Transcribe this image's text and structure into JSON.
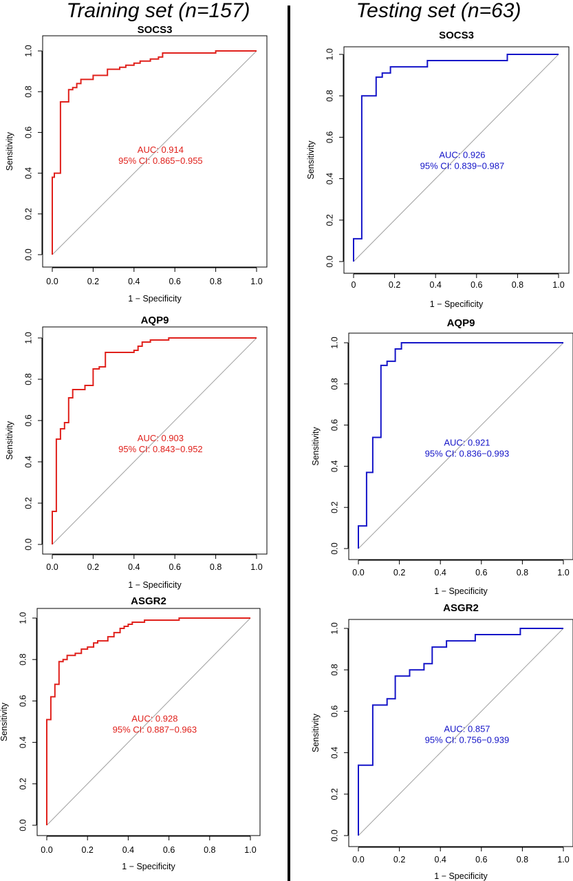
{
  "headings": {
    "left": "Training set (n=157)",
    "right": "Testing set (n=63)"
  },
  "colors": {
    "training": "#e0201b",
    "testing": "#1414c8",
    "diagonal": "#a0a0a0"
  },
  "chart_data": [
    {
      "type": "line",
      "title": "SOCS3",
      "xlabel": "1 − Specificity",
      "ylabel": "Sensitivity",
      "xlim": [
        0,
        1
      ],
      "ylim": [
        0,
        1
      ],
      "xticks": [
        "0.0",
        "0.2",
        "0.4",
        "0.6",
        "0.8",
        "1.0"
      ],
      "yticks": [
        "0.0",
        "0.2",
        "0.4",
        "0.6",
        "0.8",
        "1.0"
      ],
      "color": "#e0201b",
      "auc_text": "AUC: 0.914",
      "ci_text": "95% CI: 0.865−0.955",
      "x": [
        0,
        0,
        0.01,
        0.01,
        0.04,
        0.04,
        0.08,
        0.08,
        0.1,
        0.1,
        0.12,
        0.12,
        0.14,
        0.14,
        0.16,
        0.16,
        0.2,
        0.2,
        0.22,
        0.22,
        0.27,
        0.27,
        0.3,
        0.3,
        0.33,
        0.33,
        0.36,
        0.36,
        0.4,
        0.4,
        0.43,
        0.43,
        0.48,
        0.48,
        0.52,
        0.52,
        0.54,
        0.54,
        0.8,
        0.8,
        1
      ],
      "y": [
        0,
        0.38,
        0.38,
        0.4,
        0.4,
        0.75,
        0.75,
        0.81,
        0.81,
        0.82,
        0.82,
        0.84,
        0.84,
        0.86,
        0.86,
        0.86,
        0.86,
        0.88,
        0.88,
        0.88,
        0.88,
        0.91,
        0.91,
        0.91,
        0.91,
        0.92,
        0.92,
        0.93,
        0.93,
        0.94,
        0.94,
        0.95,
        0.95,
        0.96,
        0.96,
        0.97,
        0.97,
        0.99,
        0.99,
        1,
        1
      ]
    },
    {
      "type": "line",
      "title": "SOCS3",
      "xlabel": "1 − Specificity",
      "ylabel": "Sensitivity",
      "xlim": [
        0,
        1
      ],
      "ylim": [
        0,
        1
      ],
      "xticks": [
        "0",
        "0.2",
        "0.4",
        "0.6",
        "0.8",
        "1.0"
      ],
      "yticks": [
        "0.0",
        "0.2",
        "0.4",
        "0.6",
        "0.8",
        "1.0"
      ],
      "color": "#1414c8",
      "auc_text": "AUC: 0.926",
      "ci_text": "95% CI: 0.839−0.987",
      "x": [
        0,
        0,
        0.04,
        0.04,
        0.11,
        0.11,
        0.14,
        0.14,
        0.18,
        0.18,
        0.36,
        0.36,
        0.75,
        0.75,
        1
      ],
      "y": [
        0,
        0.11,
        0.11,
        0.8,
        0.8,
        0.89,
        0.89,
        0.91,
        0.91,
        0.94,
        0.94,
        0.97,
        0.97,
        1,
        1
      ]
    },
    {
      "type": "line",
      "title": "AQP9",
      "xlabel": "1 − Specificity",
      "ylabel": "Sensitivity",
      "xlim": [
        0,
        1
      ],
      "ylim": [
        0,
        1
      ],
      "xticks": [
        "0.0",
        "0.2",
        "0.4",
        "0.6",
        "0.8",
        "1.0"
      ],
      "yticks": [
        "0.0",
        "0.2",
        "0.4",
        "0.6",
        "0.8",
        "1.0"
      ],
      "color": "#e0201b",
      "auc_text": "AUC: 0.903",
      "ci_text": "95% CI: 0.843−0.952",
      "x": [
        0,
        0,
        0.02,
        0.02,
        0.04,
        0.04,
        0.06,
        0.06,
        0.08,
        0.08,
        0.1,
        0.1,
        0.12,
        0.12,
        0.16,
        0.16,
        0.2,
        0.2,
        0.23,
        0.23,
        0.26,
        0.26,
        0.4,
        0.4,
        0.42,
        0.42,
        0.44,
        0.44,
        0.48,
        0.48,
        0.52,
        0.52,
        0.57,
        0.57,
        1
      ],
      "y": [
        0,
        0.16,
        0.16,
        0.51,
        0.51,
        0.56,
        0.56,
        0.59,
        0.59,
        0.71,
        0.71,
        0.75,
        0.75,
        0.75,
        0.75,
        0.77,
        0.77,
        0.85,
        0.85,
        0.86,
        0.86,
        0.93,
        0.93,
        0.94,
        0.94,
        0.96,
        0.96,
        0.98,
        0.98,
        0.99,
        0.99,
        0.99,
        0.99,
        1,
        1
      ]
    },
    {
      "type": "line",
      "title": "AQP9",
      "xlabel": "1 − Specificity",
      "ylabel": "Sensitivity",
      "xlim": [
        0,
        1
      ],
      "ylim": [
        0,
        1
      ],
      "xticks": [
        "0.0",
        "0.2",
        "0.4",
        "0.6",
        "0.8",
        "1.0"
      ],
      "yticks": [
        "0.0",
        "0.2",
        "0.4",
        "0.6",
        "0.8",
        "1.0"
      ],
      "color": "#1414c8",
      "auc_text": "AUC: 0.921",
      "ci_text": "95% CI: 0.836−0.993",
      "x": [
        0,
        0,
        0.04,
        0.04,
        0.07,
        0.07,
        0.11,
        0.11,
        0.14,
        0.14,
        0.18,
        0.18,
        0.21,
        0.21,
        1
      ],
      "y": [
        0,
        0.11,
        0.11,
        0.37,
        0.37,
        0.54,
        0.54,
        0.89,
        0.89,
        0.91,
        0.91,
        0.97,
        0.97,
        1,
        1
      ]
    },
    {
      "type": "line",
      "title": "ASGR2",
      "xlabel": "1 − Specificity",
      "ylabel": "Sensitivity",
      "xlim": [
        0,
        1
      ],
      "ylim": [
        0,
        1
      ],
      "xticks": [
        "0.0",
        "0.2",
        "0.4",
        "0.6",
        "0.8",
        "1.0"
      ],
      "yticks": [
        "0.0",
        "0.2",
        "0.4",
        "0.6",
        "0.8",
        "1.0"
      ],
      "color": "#e0201b",
      "auc_text": "AUC: 0.928",
      "ci_text": "95% CI: 0.887−0.963",
      "x": [
        0,
        0,
        0.02,
        0.02,
        0.04,
        0.04,
        0.06,
        0.06,
        0.08,
        0.08,
        0.1,
        0.1,
        0.14,
        0.14,
        0.17,
        0.17,
        0.2,
        0.2,
        0.23,
        0.23,
        0.25,
        0.25,
        0.27,
        0.27,
        0.3,
        0.3,
        0.33,
        0.33,
        0.36,
        0.36,
        0.38,
        0.38,
        0.4,
        0.4,
        0.42,
        0.42,
        0.45,
        0.45,
        0.48,
        0.48,
        0.65,
        0.65,
        1
      ],
      "y": [
        0,
        0.51,
        0.51,
        0.62,
        0.62,
        0.68,
        0.68,
        0.79,
        0.79,
        0.8,
        0.8,
        0.82,
        0.82,
        0.83,
        0.83,
        0.85,
        0.85,
        0.86,
        0.86,
        0.88,
        0.88,
        0.89,
        0.89,
        0.89,
        0.89,
        0.91,
        0.91,
        0.93,
        0.93,
        0.95,
        0.95,
        0.96,
        0.96,
        0.97,
        0.97,
        0.98,
        0.98,
        0.98,
        0.98,
        0.99,
        0.99,
        1,
        1
      ]
    },
    {
      "type": "line",
      "title": "ASGR2",
      "xlabel": "1 − Specificity",
      "ylabel": "Sensitivity",
      "xlim": [
        0,
        1
      ],
      "ylim": [
        0,
        1
      ],
      "xticks": [
        "0.0",
        "0.2",
        "0.4",
        "0.6",
        "0.8",
        "1.0"
      ],
      "yticks": [
        "0.0",
        "0.2",
        "0.4",
        "0.6",
        "0.8",
        "1.0"
      ],
      "color": "#1414c8",
      "auc_text": "AUC: 0.857",
      "ci_text": "95% CI: 0.756−0.939",
      "x": [
        0,
        0,
        0.07,
        0.07,
        0.14,
        0.14,
        0.18,
        0.18,
        0.25,
        0.25,
        0.32,
        0.32,
        0.36,
        0.36,
        0.43,
        0.43,
        0.57,
        0.57,
        0.79,
        0.79,
        1
      ],
      "y": [
        0,
        0.34,
        0.34,
        0.63,
        0.63,
        0.66,
        0.66,
        0.77,
        0.77,
        0.8,
        0.8,
        0.83,
        0.83,
        0.91,
        0.91,
        0.94,
        0.94,
        0.97,
        0.97,
        1,
        1
      ]
    }
  ]
}
